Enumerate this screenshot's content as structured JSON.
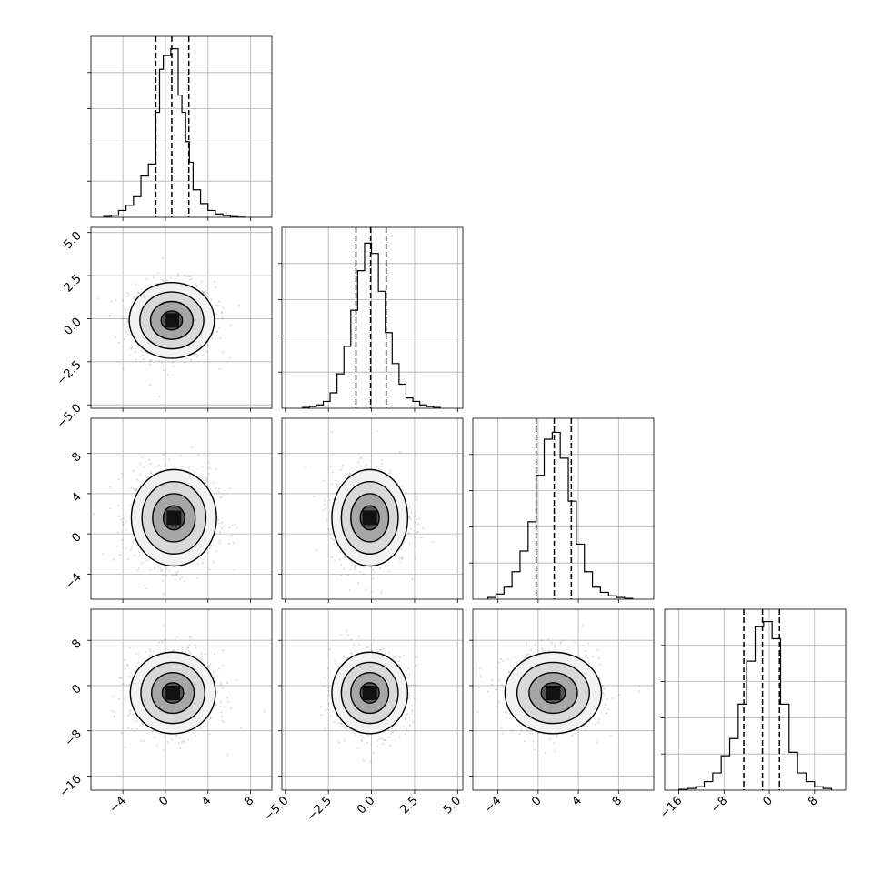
{
  "chart_data": {
    "type": "corner",
    "description_free": true,
    "grid": true,
    "params": [
      {
        "index": 0,
        "hist_ticks": [
          -4,
          0,
          4,
          8
        ],
        "tick_labels": [
          "−4",
          "0",
          "4",
          "8"
        ],
        "range": [
          -7,
          10
        ],
        "quantiles": [
          -0.9,
          0.6,
          2.2
        ],
        "hist": {
          "bins": [
            -5.8,
            -5.1,
            -4.4,
            -3.7,
            -3.0,
            -2.3,
            -1.6,
            -0.9,
            -0.55,
            -0.2,
            0.15,
            0.5,
            0.85,
            1.2,
            1.55,
            1.9,
            2.25,
            2.6,
            3.3,
            4.0,
            4.7,
            5.4,
            6.1,
            6.8,
            7.5
          ],
          "counts": [
            0.005,
            0.012,
            0.04,
            0.07,
            0.12,
            0.24,
            0.31,
            0.61,
            0.86,
            0.94,
            0.94,
            0.98,
            0.98,
            0.71,
            0.61,
            0.44,
            0.32,
            0.16,
            0.08,
            0.04,
            0.02,
            0.01,
            0.004,
            0.001
          ]
        }
      },
      {
        "index": 1,
        "y_ticks": [
          5.0,
          2.5,
          0.0,
          -2.5,
          -5.0
        ],
        "y_tick_labels": [
          "5.0",
          "2.5",
          "0.0",
          "−2.5",
          "−5.0"
        ],
        "hist_ticks": [
          -5.0,
          -2.5,
          0.0,
          2.5,
          5.0
        ],
        "tick_labels": [
          "−5.0",
          "−2.5",
          "0.0",
          "2.5",
          "5.0"
        ],
        "range": [
          -5.2,
          5.3
        ],
        "quantiles": [
          -0.9,
          -0.05,
          0.85
        ],
        "hist": {
          "bins": [
            -4.0,
            -3.6,
            -3.2,
            -2.8,
            -2.4,
            -2.0,
            -1.6,
            -1.2,
            -0.8,
            -0.4,
            0.0,
            0.4,
            0.8,
            1.2,
            1.6,
            2.0,
            2.4,
            2.8,
            3.2,
            3.6,
            4.0
          ],
          "counts": [
            0.005,
            0.01,
            0.02,
            0.04,
            0.09,
            0.2,
            0.36,
            0.57,
            0.8,
            0.96,
            0.9,
            0.68,
            0.44,
            0.26,
            0.14,
            0.06,
            0.04,
            0.02,
            0.01,
            0.005
          ]
        }
      },
      {
        "index": 2,
        "y_ticks": [
          8,
          4,
          0,
          -4
        ],
        "y_tick_labels": [
          "8",
          "4",
          "0",
          "−4"
        ],
        "hist_ticks": [
          -4,
          0,
          4,
          8
        ],
        "tick_labels": [
          "−4",
          "0",
          "4",
          "8"
        ],
        "range": [
          -6.5,
          11.5
        ],
        "quantiles": [
          -0.2,
          1.6,
          3.3
        ],
        "hist": {
          "bins": [
            -5.0,
            -4.2,
            -3.4,
            -2.6,
            -1.8,
            -1.0,
            -0.2,
            0.6,
            1.4,
            2.2,
            3.0,
            3.8,
            4.6,
            5.4,
            6.2,
            7.0,
            7.8,
            8.6,
            9.4
          ],
          "counts": [
            0.01,
            0.03,
            0.07,
            0.16,
            0.28,
            0.45,
            0.72,
            0.93,
            0.97,
            0.82,
            0.57,
            0.32,
            0.16,
            0.07,
            0.04,
            0.02,
            0.01,
            0.005
          ]
        }
      },
      {
        "index": 3,
        "y_ticks": [
          8,
          0,
          -8,
          -16
        ],
        "y_tick_labels": [
          "8",
          "0",
          "−8",
          "−16"
        ],
        "hist_ticks": [
          -16,
          -8,
          0,
          8
        ],
        "tick_labels": [
          "−16",
          "−8",
          "0",
          "8"
        ],
        "range": [
          -18.5,
          13.5
        ],
        "quantiles": [
          -4.5,
          -1.2,
          1.8
        ],
        "hist": {
          "bins": [
            -16.0,
            -14.5,
            -13.0,
            -11.5,
            -10.0,
            -8.5,
            -7.0,
            -5.5,
            -4.0,
            -2.5,
            -1.0,
            0.5,
            2.0,
            3.5,
            5.0,
            6.5,
            8.0,
            9.5,
            11.0
          ],
          "counts": [
            0.005,
            0.01,
            0.02,
            0.05,
            0.1,
            0.2,
            0.3,
            0.5,
            0.75,
            0.95,
            0.98,
            0.88,
            0.5,
            0.22,
            0.1,
            0.05,
            0.02,
            0.01
          ]
        }
      }
    ],
    "pairs": [
      {
        "row": 1,
        "col": 0,
        "center": [
          0.6,
          -0.1
        ],
        "sd": [
          2.0,
          1.1
        ]
      },
      {
        "row": 2,
        "col": 0,
        "center": [
          0.8,
          1.6
        ],
        "sd": [
          2.0,
          2.4
        ]
      },
      {
        "row": 2,
        "col": 1,
        "center": [
          -0.1,
          1.6
        ],
        "sd": [
          1.1,
          2.4
        ]
      },
      {
        "row": 3,
        "col": 0,
        "center": [
          0.7,
          -1.3
        ],
        "sd": [
          2.0,
          3.6
        ]
      },
      {
        "row": 3,
        "col": 1,
        "center": [
          -0.1,
          -1.3
        ],
        "sd": [
          1.1,
          3.6
        ]
      },
      {
        "row": 3,
        "col": 2,
        "center": [
          1.5,
          -1.3
        ],
        "sd": [
          2.4,
          3.6
        ]
      }
    ]
  }
}
